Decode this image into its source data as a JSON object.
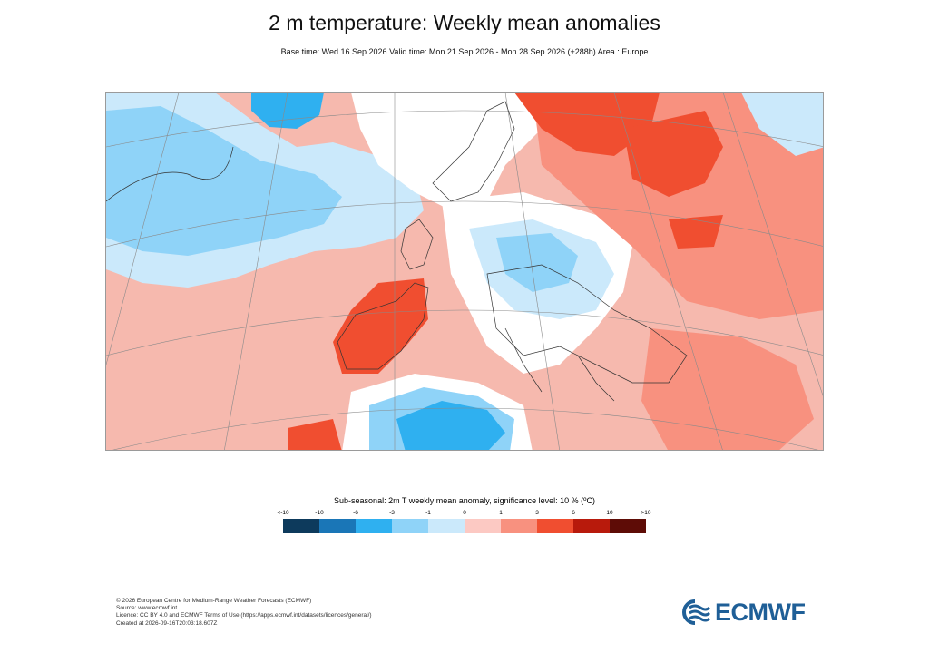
{
  "header": {
    "title": "2 m temperature: Weekly mean anomalies",
    "subtitle": "Base time: Wed 16 Sep 2026 Valid time: Mon 21 Sep 2026 - Mon 28 Sep 2026 (+288h) Area : Europe"
  },
  "map": {
    "area": "Europe",
    "variable": "2m T weekly mean anomaly"
  },
  "legend": {
    "title": "Sub-seasonal: 2m T weekly mean anomaly, significance level: 10 % (ºC)",
    "labels": [
      "<-10",
      "-10",
      "-6",
      "-3",
      "-1",
      "0",
      "1",
      "3",
      "6",
      "10",
      ">10"
    ],
    "colors": [
      "#0d3a5c",
      "#1a76b7",
      "#2fb0f0",
      "#8fd3f8",
      "#cbe9fb",
      "#fcc9c3",
      "#f8917f",
      "#f04e30",
      "#b81a0c",
      "#5e0c06"
    ]
  },
  "footer": {
    "lines": [
      "© 2026 European Centre for Medium-Range Weather Forecasts (ECMWF)",
      "Source: www.ecmwf.int",
      "Licence: CC BY 4.0 and ECMWF Terms of Use (https://apps.ecmwf.int/datasets/licences/general/)",
      "Created at 2026-09-16T20:03:18.607Z"
    ]
  },
  "logo": {
    "text": "ECMWF",
    "color": "#1f5f97"
  }
}
